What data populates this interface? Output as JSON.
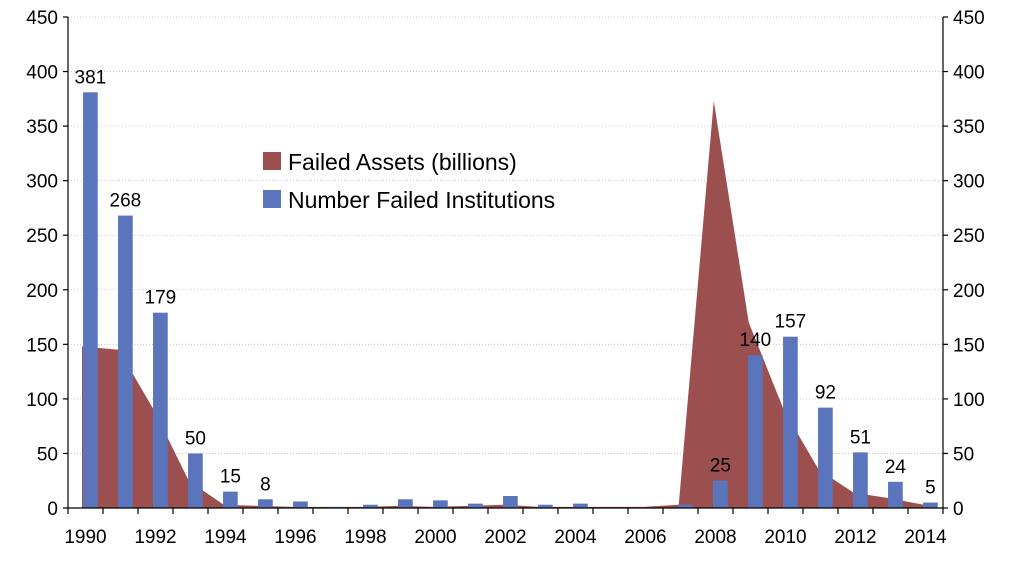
{
  "chart_data": {
    "type": "bar",
    "title": "",
    "xlabel": "",
    "ylabel": "",
    "x": [
      1990,
      1991,
      1992,
      1993,
      1994,
      1995,
      1996,
      1997,
      1998,
      1999,
      2000,
      2001,
      2002,
      2003,
      2004,
      2005,
      2006,
      2007,
      2008,
      2009,
      2010,
      2011,
      2012,
      2013,
      2014
    ],
    "x_tick_labels": [
      "1990",
      "1992",
      "1994",
      "1996",
      "1998",
      "2000",
      "2002",
      "2004",
      "2006",
      "2008",
      "2010",
      "2012",
      "2014"
    ],
    "ylim": [
      0,
      450
    ],
    "y_ticks": [
      0,
      50,
      100,
      150,
      200,
      250,
      300,
      350,
      400,
      450
    ],
    "y2lim": [
      0,
      450
    ],
    "y2_ticks": [
      0,
      50,
      100,
      150,
      200,
      250,
      300,
      350,
      400,
      450
    ],
    "grid": true,
    "legend_placement": "center-left",
    "series": [
      {
        "name": "Failed Assets (billions)",
        "type": "area",
        "color": "#9b4f4f",
        "values": [
          148,
          145,
          90,
          25,
          3,
          2,
          1,
          1,
          1,
          2,
          1,
          2,
          3,
          1,
          1,
          1,
          1,
          3,
          373,
          170,
          90,
          35,
          14,
          9,
          3
        ]
      },
      {
        "name": "Number Failed Institutions",
        "type": "bar",
        "color": "#5b75bd",
        "values": [
          381,
          268,
          179,
          50,
          15,
          8,
          6,
          1,
          3,
          8,
          7,
          4,
          11,
          3,
          4,
          0,
          0,
          3,
          25,
          140,
          157,
          92,
          51,
          24,
          5
        ],
        "data_labels": [
          "381",
          "268",
          "179",
          "50",
          "15",
          "8",
          "",
          "",
          "",
          "",
          "",
          "",
          "",
          "",
          "",
          "",
          "",
          "",
          "25",
          "140",
          "157",
          "92",
          "51",
          "24",
          "5"
        ]
      }
    ]
  }
}
